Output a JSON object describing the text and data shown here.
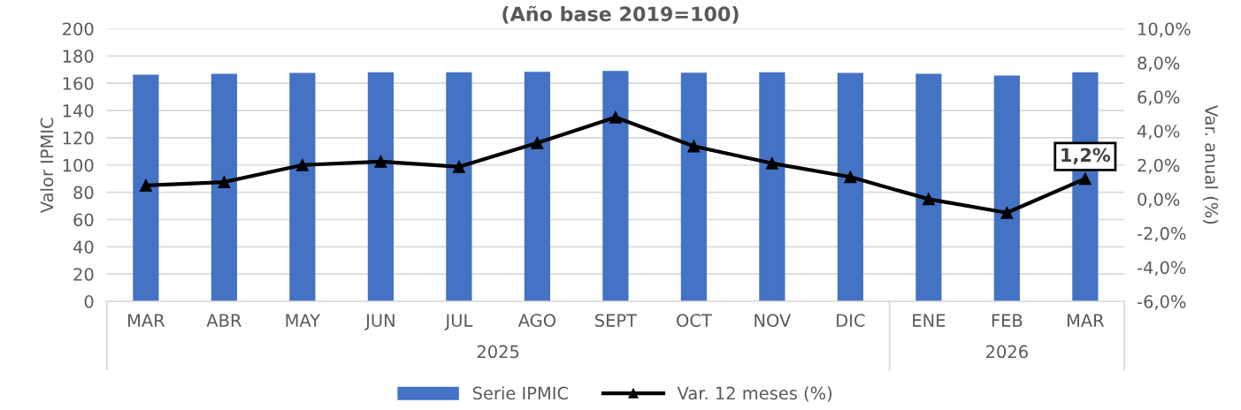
{
  "chart_data": {
    "type": "bar",
    "title": "(Año base 2019=100)",
    "ylabel": "Valor IPMIC",
    "y2label": "Var. anual (%)",
    "categories": [
      "MAR",
      "ABR",
      "MAY",
      "JUN",
      "JUL",
      "AGO",
      "SEPT",
      "OCT",
      "NOV",
      "DIC",
      "ENE",
      "FEB",
      "MAR"
    ],
    "annotations": [
      "2025",
      "2026"
    ],
    "series": [
      {
        "name": "Serie IPMIC",
        "color": "#4472c4",
        "values": [
          166.3,
          166.9,
          167.5,
          168,
          168,
          168.4,
          169,
          167.8,
          168,
          167.5,
          167,
          165.6,
          168
        ]
      },
      {
        "name": "Var. 12 meses (%)",
        "type": "line",
        "axis": "y2",
        "color": "#000000",
        "marker": "triangle",
        "values": [
          0.8,
          1.0,
          2.0,
          2.2,
          1.9,
          3.3,
          4.8,
          3.1,
          2.1,
          1.3,
          0.0,
          -0.8,
          1.2
        ],
        "value_labels": [
          null,
          null,
          null,
          null,
          null,
          null,
          null,
          null,
          null,
          null,
          null,
          null,
          "1,2%"
        ]
      }
    ],
    "ylim": [
      0,
      200
    ],
    "yticks": [
      0,
      20,
      40,
      60,
      80,
      100,
      120,
      140,
      160,
      180,
      200
    ],
    "y2lim": [
      -6,
      10
    ],
    "y2ticks": [
      {
        "value": -6,
        "label": "-6,0%"
      },
      {
        "value": -4,
        "label": "-4,0%"
      },
      {
        "value": -2,
        "label": "-2,0%"
      },
      {
        "value": 0,
        "label": "0,0%"
      },
      {
        "value": 2,
        "label": "2,0%"
      },
      {
        "value": 4,
        "label": "4,0%"
      },
      {
        "value": 6,
        "label": "6,0%"
      },
      {
        "value": 8,
        "label": "8,0%"
      },
      {
        "value": 10,
        "label": "10,0%"
      }
    ],
    "grid": "y",
    "legend": "bottom"
  }
}
